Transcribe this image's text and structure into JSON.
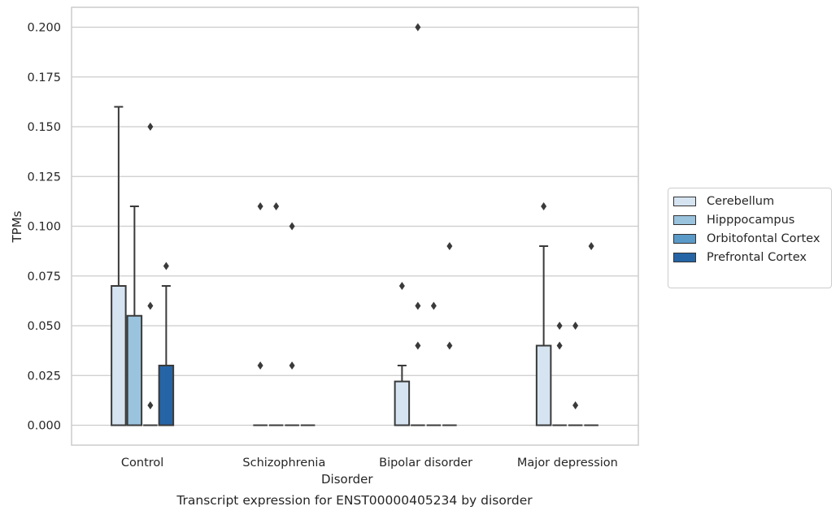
{
  "chart_data": {
    "type": "box",
    "caption": "Transcript expression for ENST00000405234 by disorder",
    "xlabel": "Disorder",
    "ylabel": "TPMs",
    "ylim": [
      -0.01,
      0.21
    ],
    "yticks": [
      "0.000",
      "0.025",
      "0.050",
      "0.075",
      "0.100",
      "0.125",
      "0.150",
      "0.175",
      "0.200"
    ],
    "grid": true,
    "legend_position": "right",
    "categories": [
      "Control",
      "Schizophrenia",
      "Bipolar disorder",
      "Major depression"
    ],
    "series": [
      {
        "name": "Cerebellum",
        "color": "#d6e4f1",
        "boxes": [
          {
            "q1": 0.0,
            "median": 0.0,
            "q3": 0.07,
            "whisker_low": 0.0,
            "whisker_high": 0.16,
            "outliers": []
          },
          {
            "q1": 0.0,
            "median": 0.0,
            "q3": 0.0,
            "whisker_low": 0.0,
            "whisker_high": 0.0,
            "outliers": [
              0.11,
              0.03
            ]
          },
          {
            "q1": 0.0,
            "median": 0.0,
            "q3": 0.022,
            "whisker_low": 0.0,
            "whisker_high": 0.03,
            "outliers": [
              0.07
            ]
          },
          {
            "q1": 0.0,
            "median": 0.0,
            "q3": 0.04,
            "whisker_low": 0.0,
            "whisker_high": 0.09,
            "outliers": [
              0.11
            ]
          }
        ]
      },
      {
        "name": "Hipppocampus",
        "color": "#9ac3dd",
        "boxes": [
          {
            "q1": 0.0,
            "median": 0.0,
            "q3": 0.055,
            "whisker_low": 0.0,
            "whisker_high": 0.11,
            "outliers": []
          },
          {
            "q1": 0.0,
            "median": 0.0,
            "q3": 0.0,
            "whisker_low": 0.0,
            "whisker_high": 0.0,
            "outliers": [
              0.11
            ]
          },
          {
            "q1": 0.0,
            "median": 0.0,
            "q3": 0.0,
            "whisker_low": 0.0,
            "whisker_high": 0.0,
            "outliers": [
              0.2,
              0.06,
              0.04
            ]
          },
          {
            "q1": 0.0,
            "median": 0.0,
            "q3": 0.0,
            "whisker_low": 0.0,
            "whisker_high": 0.0,
            "outliers": [
              0.05,
              0.04
            ]
          }
        ]
      },
      {
        "name": "Orbitofontal Cortex",
        "color": "#5a9ac8",
        "boxes": [
          {
            "q1": 0.0,
            "median": 0.0,
            "q3": 0.0,
            "whisker_low": 0.0,
            "whisker_high": 0.0,
            "outliers": [
              0.15,
              0.06,
              0.01
            ]
          },
          {
            "q1": 0.0,
            "median": 0.0,
            "q3": 0.0,
            "whisker_low": 0.0,
            "whisker_high": 0.0,
            "outliers": [
              0.1,
              0.03
            ]
          },
          {
            "q1": 0.0,
            "median": 0.0,
            "q3": 0.0,
            "whisker_low": 0.0,
            "whisker_high": 0.0,
            "outliers": [
              0.06
            ]
          },
          {
            "q1": 0.0,
            "median": 0.0,
            "q3": 0.0,
            "whisker_low": 0.0,
            "whisker_high": 0.0,
            "outliers": [
              0.05,
              0.01
            ]
          }
        ]
      },
      {
        "name": "Prefrontal Cortex",
        "color": "#2565a6",
        "boxes": [
          {
            "q1": 0.0,
            "median": 0.0,
            "q3": 0.03,
            "whisker_low": 0.0,
            "whisker_high": 0.07,
            "outliers": [
              0.08
            ]
          },
          {
            "q1": 0.0,
            "median": 0.0,
            "q3": 0.0,
            "whisker_low": 0.0,
            "whisker_high": 0.0,
            "outliers": []
          },
          {
            "q1": 0.0,
            "median": 0.0,
            "q3": 0.0,
            "whisker_low": 0.0,
            "whisker_high": 0.0,
            "outliers": [
              0.09,
              0.04
            ]
          },
          {
            "q1": 0.0,
            "median": 0.0,
            "q3": 0.0,
            "whisker_low": 0.0,
            "whisker_high": 0.0,
            "outliers": [
              0.09
            ]
          }
        ]
      }
    ]
  }
}
